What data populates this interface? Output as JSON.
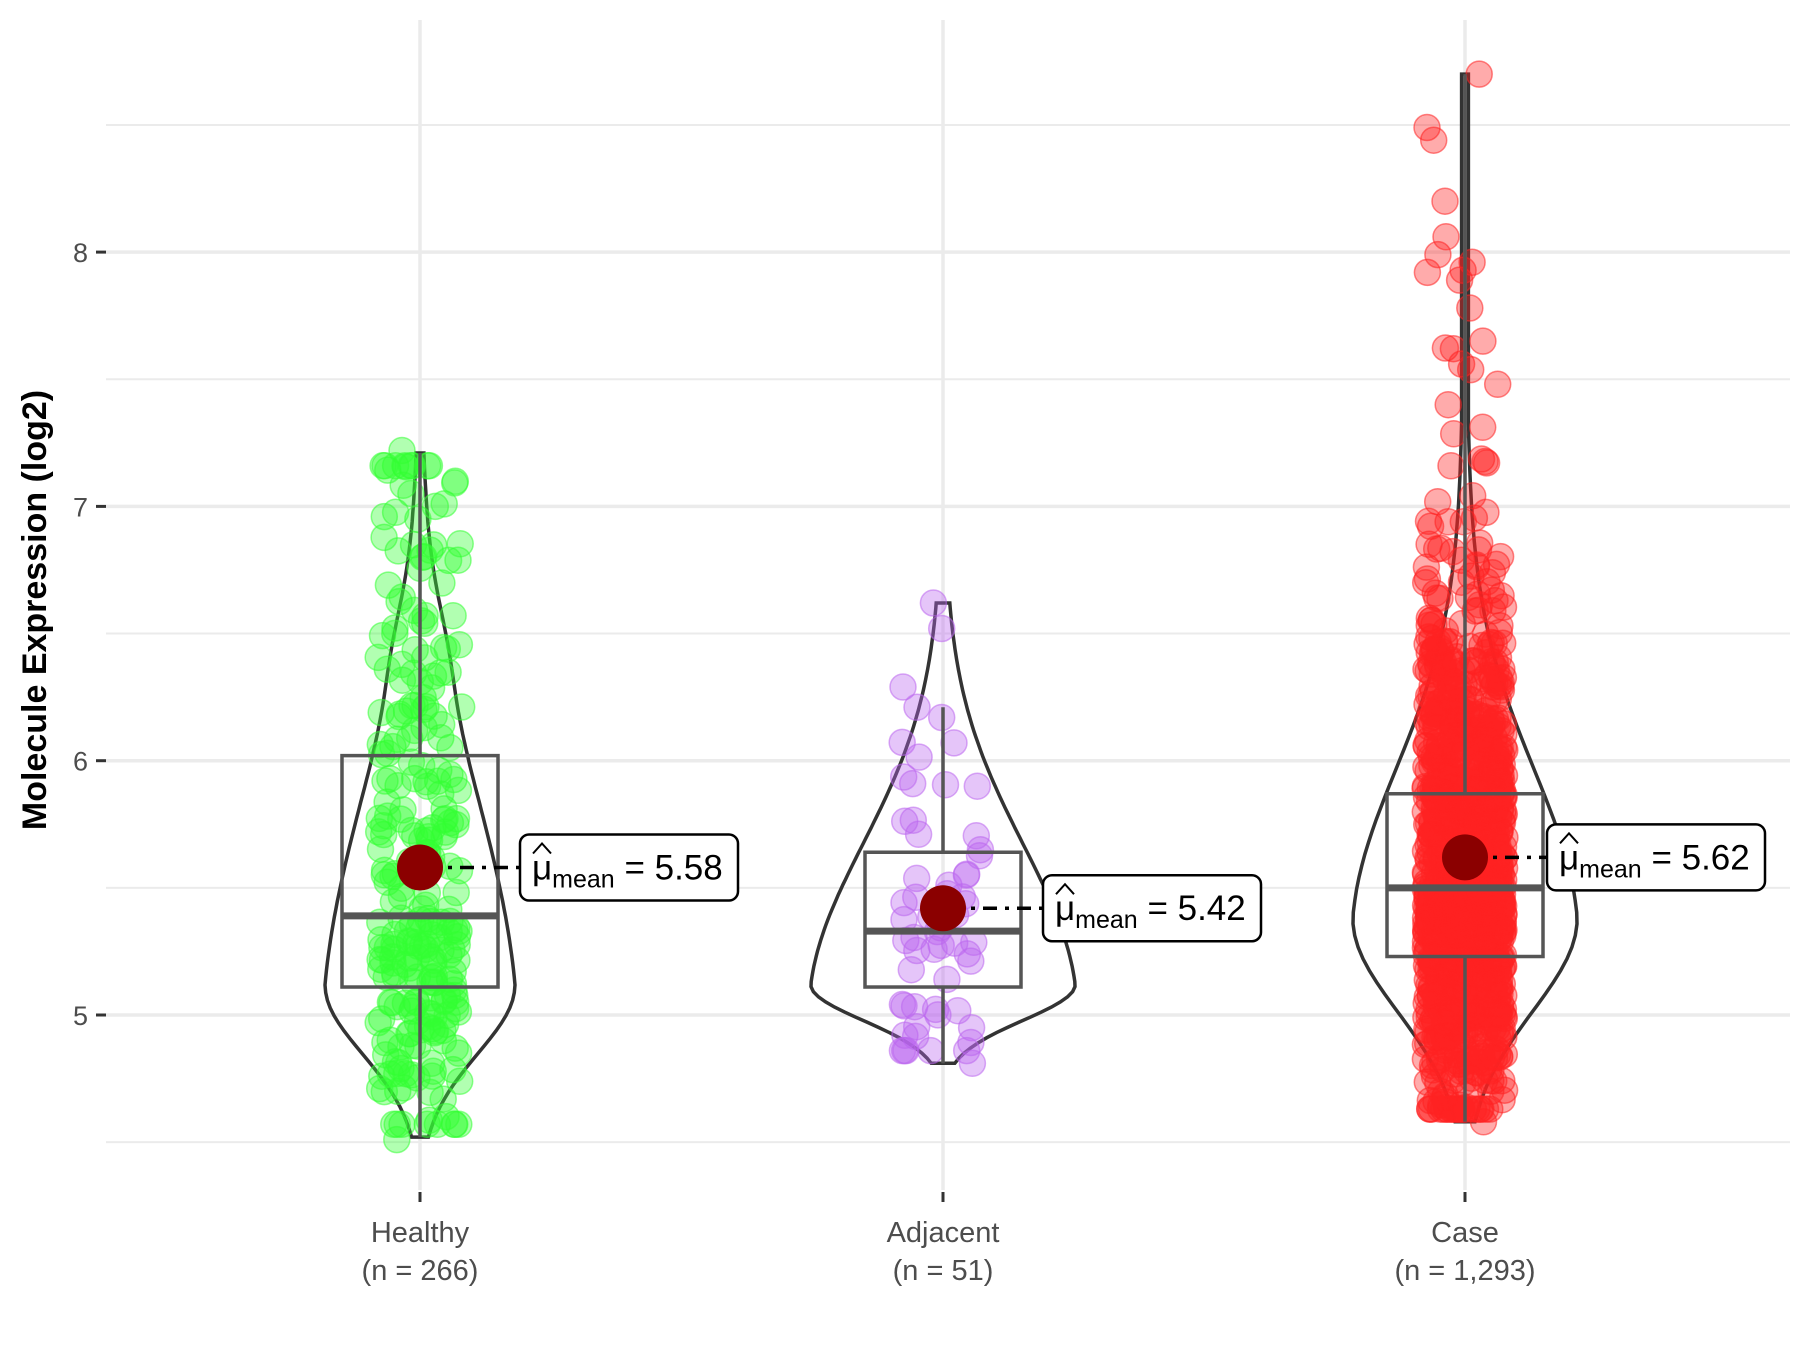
{
  "chart_data": {
    "type": "violin-box-jitter",
    "title": "",
    "xlabel": "",
    "ylabel": "Molecule Expression (log2)",
    "ylim": [
      4.42,
      8.87
    ],
    "yticks": [
      5,
      6,
      7,
      8
    ],
    "ygrid_minor": [
      4.5,
      5.5,
      6.5,
      7.5,
      8.5
    ],
    "grid": true,
    "legend": "none",
    "mean_label_prefix": "μ",
    "mean_label_subscript": "mean",
    "mean_color": "#8B0000",
    "groups": [
      {
        "name": "Healthy",
        "n_label": "(n = 266)",
        "n": 266,
        "color": "#33FF33",
        "mean": 5.58,
        "mean_label": "= 5.58",
        "box": {
          "q1": 5.11,
          "median": 5.39,
          "q3": 6.02,
          "whisker_low": 4.52,
          "whisker_high": 7.21
        },
        "violin": {
          "min": 4.52,
          "max": 7.21,
          "mode": 5.12
        },
        "points_extreme": [
          7.22,
          7.01,
          7.0,
          6.96,
          6.95,
          4.51,
          4.7,
          4.77
        ]
      },
      {
        "name": "Adjacent",
        "n_label": "(n = 51)",
        "n": 51,
        "color": "#BB66EE",
        "mean": 5.42,
        "mean_label": "= 5.42",
        "box": {
          "q1": 5.11,
          "median": 5.33,
          "q3": 5.64,
          "whisker_low": 4.81,
          "whisker_high": 6.21
        },
        "violin": {
          "min": 4.81,
          "max": 6.62,
          "mode": 5.12
        },
        "points_extreme": [
          6.62,
          6.52,
          6.21,
          6.17,
          6.07,
          5.91,
          4.81,
          4.92,
          4.95
        ]
      },
      {
        "name": "Case",
        "n_label": "(n = 1,293)",
        "n": 1293,
        "color": "#FF2222",
        "mean": 5.62,
        "mean_label": "= 5.62",
        "box": {
          "q1": 5.23,
          "median": 5.5,
          "q3": 5.87,
          "whisker_low": 4.58,
          "whisker_high": 8.7
        },
        "violin": {
          "min": 4.58,
          "max": 8.7,
          "mode": 5.38
        },
        "points_extreme": [
          8.7,
          8.49,
          8.44,
          8.2,
          8.06,
          7.99,
          7.96,
          7.92,
          7.89,
          7.78,
          7.65,
          7.62,
          7.56,
          7.48,
          7.4,
          4.58,
          4.66,
          4.7
        ]
      }
    ]
  }
}
